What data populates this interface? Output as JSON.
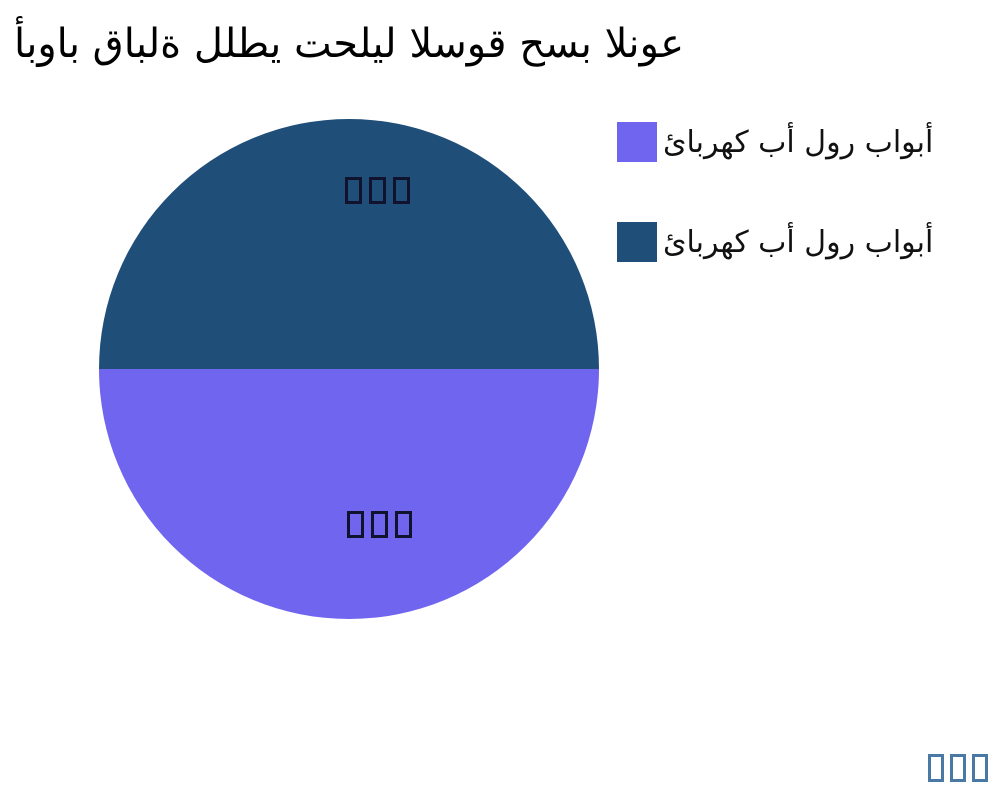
{
  "title": "أبواب قابلة للطي تحليل السوق حسب النوع",
  "colors": {
    "background": "#FFFFFF",
    "title_text": "#000000",
    "legend_text": "#111111",
    "slice_label_boxes": "#10122E",
    "watermark_boxes": "#4B79A5"
  },
  "legend": {
    "position": "right",
    "items": [
      {
        "label": "أبواب رول أب كهربائ",
        "color": "#7065EF"
      },
      {
        "label": "أبواب رول أب كهربائ",
        "color": "#1F4E79"
      }
    ]
  },
  "watermark": {
    "text": "□□□"
  },
  "chart_data": {
    "type": "pie",
    "title": "أبواب قابلة للطي تحليل السوق حسب النوع",
    "slices": [
      {
        "label": "أبواب رول أب كهربائ",
        "value": 50,
        "color": "#7065EF",
        "value_label": "□□□",
        "half": "bottom"
      },
      {
        "label": "أبواب رول أب كهربائ",
        "value": 50,
        "color": "#1F4E79",
        "value_label": "□□□",
        "half": "top"
      }
    ],
    "total": 100,
    "legend_position": "right",
    "background": "#FFFFFF"
  }
}
